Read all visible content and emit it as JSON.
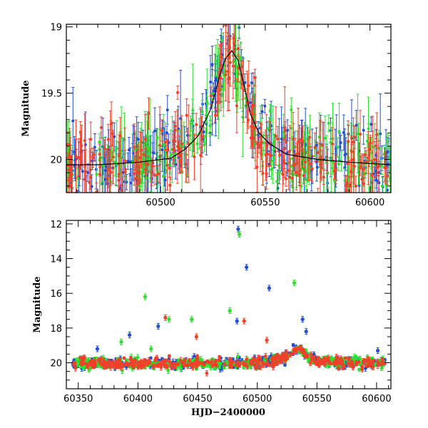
{
  "chart_data": [
    {
      "type": "scatter",
      "title": "",
      "xlabel": "",
      "ylabel": "Magnitude",
      "xlim": [
        60455,
        60610
      ],
      "ylim": [
        20.25,
        18.98
      ],
      "y_inverted": true,
      "xticks": [
        60500,
        60550,
        60600
      ],
      "yticks": [
        19,
        19.5,
        20
      ],
      "ytick_labels": [
        "19",
        "19.5",
        "20"
      ],
      "grid": false,
      "legend": "none",
      "model_curve": {
        "x": [
          60455,
          60470,
          60490,
          60505,
          60512,
          60518,
          60524,
          60528,
          60531,
          60534,
          60537,
          60540,
          60543,
          60547,
          60552,
          60560,
          60575,
          60590,
          60610
        ],
        "y": [
          20.04,
          20.04,
          20.02,
          19.99,
          19.92,
          19.82,
          19.62,
          19.38,
          19.24,
          19.18,
          19.25,
          19.45,
          19.66,
          19.8,
          19.88,
          19.96,
          20.0,
          20.02,
          20.04
        ]
      },
      "series": [
        {
          "color": "#1f4fd6",
          "role": "blue"
        },
        {
          "color": "#2de02d",
          "role": "green"
        },
        {
          "color": "#f0412a",
          "role": "red"
        }
      ]
    },
    {
      "type": "scatter",
      "title": "",
      "xlabel": "HJD−2400000",
      "ylabel": "Magnitude",
      "xlim": [
        60340,
        60612
      ],
      "ylim": [
        21.5,
        11.8
      ],
      "y_inverted": true,
      "xticks": [
        60350,
        60400,
        60450,
        60500,
        60550,
        60600
      ],
      "yticks": [
        12,
        14,
        16,
        18,
        20
      ],
      "grid": false,
      "legend": "none",
      "outliers": [
        {
          "series": "blue",
          "x": 60484,
          "y": 12.3
        },
        {
          "series": "green",
          "x": 60485,
          "y": 12.6
        },
        {
          "series": "blue",
          "x": 60491,
          "y": 14.5
        },
        {
          "series": "blue",
          "x": 60510,
          "y": 15.7
        },
        {
          "series": "green",
          "x": 60531,
          "y": 15.4
        },
        {
          "series": "green",
          "x": 60406,
          "y": 16.2
        },
        {
          "series": "blue",
          "x": 60417,
          "y": 17.9
        },
        {
          "series": "red",
          "x": 60423,
          "y": 17.4
        },
        {
          "series": "green",
          "x": 60426,
          "y": 17.5
        },
        {
          "series": "green",
          "x": 60445,
          "y": 17.5
        },
        {
          "series": "green",
          "x": 60477,
          "y": 17.0
        },
        {
          "series": "blue",
          "x": 60483,
          "y": 17.6
        },
        {
          "series": "red",
          "x": 60489,
          "y": 17.6
        },
        {
          "series": "blue",
          "x": 60538,
          "y": 17.5
        },
        {
          "series": "blue",
          "x": 60393,
          "y": 18.4
        },
        {
          "series": "green",
          "x": 60386,
          "y": 18.8
        },
        {
          "series": "red",
          "x": 60449,
          "y": 18.5
        },
        {
          "series": "red",
          "x": 60508,
          "y": 18.7
        },
        {
          "series": "blue",
          "x": 60541,
          "y": 18.2
        },
        {
          "series": "green",
          "x": 60411,
          "y": 19.2
        },
        {
          "series": "blue",
          "x": 60601,
          "y": 19.3
        },
        {
          "series": "blue",
          "x": 60366,
          "y": 19.2
        }
      ],
      "series": [
        {
          "color": "#1f4fd6",
          "role": "blue"
        },
        {
          "color": "#2de02d",
          "role": "green"
        },
        {
          "color": "#f0412a",
          "role": "red"
        }
      ]
    }
  ]
}
